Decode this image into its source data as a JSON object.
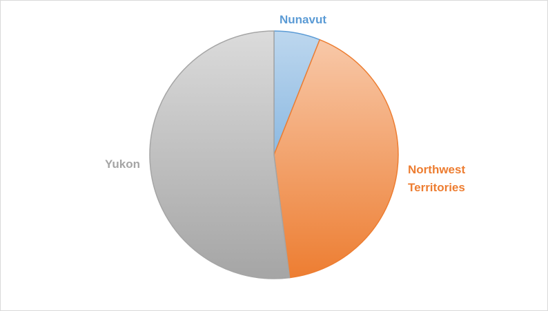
{
  "chart_data": {
    "type": "pie",
    "categories": [
      "Nunavut",
      "Northwest Territories",
      "Yukon"
    ],
    "values": [
      6,
      42,
      52
    ],
    "label_lines": [
      [
        "Nunavut"
      ],
      [
        "Northwest",
        "Territories"
      ],
      [
        "Yukon"
      ]
    ],
    "colors": {
      "Nunavut": "#5b9bd5",
      "Northwest Territories": "#ed7d31",
      "Yukon": "#a5a5a5"
    },
    "gradient_light": {
      "Nunavut": "#bdd7ee",
      "Northwest Territories": "#f8cbad",
      "Yukon": "#dbdbdb"
    },
    "title": "",
    "legend": "none"
  }
}
